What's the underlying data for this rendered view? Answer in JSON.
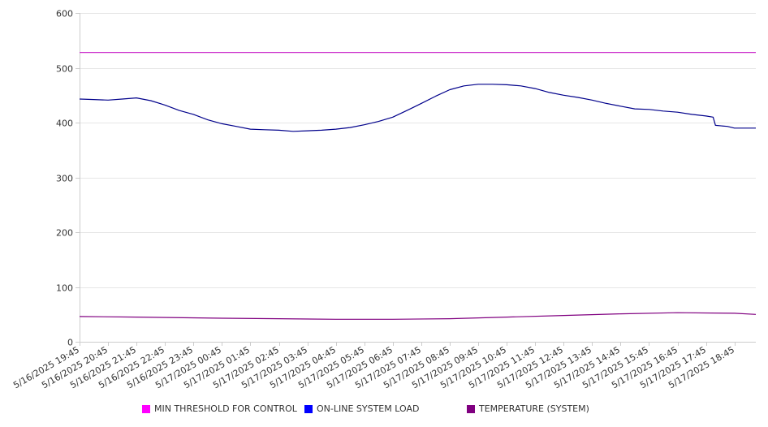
{
  "chart_data": {
    "type": "line",
    "title": "",
    "xlabel": "",
    "ylabel": "",
    "ylim": [
      0,
      600
    ],
    "yticks": [
      0,
      100,
      200,
      300,
      400,
      500,
      600
    ],
    "grid": true,
    "legend_position": "bottom",
    "x_start": "5/16/2025 19:45",
    "x_end": "5/17/2025 19:30",
    "xtick_labels": [
      "5/16/2025 19:45",
      "5/16/2025 20:45",
      "5/16/2025 21:45",
      "5/16/2025 22:45",
      "5/16/2025 23:45",
      "5/17/2025 00:45",
      "5/17/2025 01:45",
      "5/17/2025 02:45",
      "5/17/2025 03:45",
      "5/17/2025 04:45",
      "5/17/2025 05:45",
      "5/17/2025 06:45",
      "5/17/2025 07:45",
      "5/17/2025 08:45",
      "5/17/2025 09:45",
      "5/17/2025 10:45",
      "5/17/2025 11:45",
      "5/17/2025 12:45",
      "5/17/2025 13:45",
      "5/17/2025 14:45",
      "5/17/2025 15:45",
      "5/17/2025 16:45",
      "5/17/2025 17:45",
      "5/17/2025 18:45"
    ],
    "series": [
      {
        "name": "MIN THRESHOLD FOR CONTROL",
        "color": "#cc33cc",
        "legend_color": "#ff00ff",
        "points": [
          [
            "5/16/2025 19:45",
            528
          ],
          [
            "5/17/2025 19:30",
            528
          ]
        ]
      },
      {
        "name": "ON-LINE SYSTEM LOAD",
        "color": "#00008b",
        "legend_color": "#0000ff",
        "points": [
          [
            "5/16/2025 19:45",
            443
          ],
          [
            "5/16/2025 20:15",
            442
          ],
          [
            "5/16/2025 20:45",
            441
          ],
          [
            "5/16/2025 21:15",
            443
          ],
          [
            "5/16/2025 21:45",
            445
          ],
          [
            "5/16/2025 22:15",
            440
          ],
          [
            "5/16/2025 22:45",
            432
          ],
          [
            "5/16/2025 23:15",
            422
          ],
          [
            "5/16/2025 23:45",
            415
          ],
          [
            "5/17/2025 00:15",
            405
          ],
          [
            "5/17/2025 00:45",
            398
          ],
          [
            "5/17/2025 01:15",
            393
          ],
          [
            "5/17/2025 01:45",
            388
          ],
          [
            "5/17/2025 02:15",
            387
          ],
          [
            "5/17/2025 02:45",
            386
          ],
          [
            "5/17/2025 03:15",
            384
          ],
          [
            "5/17/2025 03:45",
            385
          ],
          [
            "5/17/2025 04:15",
            386
          ],
          [
            "5/17/2025 04:45",
            388
          ],
          [
            "5/17/2025 05:15",
            391
          ],
          [
            "5/17/2025 05:45",
            396
          ],
          [
            "5/17/2025 06:15",
            402
          ],
          [
            "5/17/2025 06:45",
            410
          ],
          [
            "5/17/2025 07:15",
            422
          ],
          [
            "5/17/2025 07:45",
            435
          ],
          [
            "5/17/2025 08:15",
            448
          ],
          [
            "5/17/2025 08:45",
            460
          ],
          [
            "5/17/2025 09:15",
            467
          ],
          [
            "5/17/2025 09:45",
            470
          ],
          [
            "5/17/2025 10:15",
            470
          ],
          [
            "5/17/2025 10:45",
            469
          ],
          [
            "5/17/2025 11:15",
            467
          ],
          [
            "5/17/2025 11:45",
            462
          ],
          [
            "5/17/2025 12:15",
            455
          ],
          [
            "5/17/2025 12:45",
            450
          ],
          [
            "5/17/2025 13:15",
            446
          ],
          [
            "5/17/2025 13:45",
            441
          ],
          [
            "5/17/2025 14:15",
            435
          ],
          [
            "5/17/2025 14:45",
            430
          ],
          [
            "5/17/2025 15:15",
            425
          ],
          [
            "5/17/2025 15:45",
            424
          ],
          [
            "5/17/2025 16:15",
            421
          ],
          [
            "5/17/2025 16:45",
            419
          ],
          [
            "5/17/2025 17:15",
            415
          ],
          [
            "5/17/2025 17:45",
            412
          ],
          [
            "5/17/2025 18:00",
            410
          ],
          [
            "5/17/2025 18:05",
            395
          ],
          [
            "5/17/2025 18:30",
            393
          ],
          [
            "5/17/2025 18:45",
            390
          ],
          [
            "5/17/2025 19:30",
            390
          ]
        ]
      },
      {
        "name": "TEMPERATURE (SYSTEM)",
        "color": "#800080",
        "legend_color": "#800080",
        "points": [
          [
            "5/16/2025 19:45",
            46
          ],
          [
            "5/16/2025 21:45",
            45
          ],
          [
            "5/17/2025 00:45",
            43
          ],
          [
            "5/17/2025 02:45",
            42
          ],
          [
            "5/17/2025 04:45",
            41
          ],
          [
            "5/17/2025 06:45",
            41
          ],
          [
            "5/17/2025 08:45",
            42
          ],
          [
            "5/17/2025 10:45",
            45
          ],
          [
            "5/17/2025 12:45",
            48
          ],
          [
            "5/17/2025 14:45",
            51
          ],
          [
            "5/17/2025 16:45",
            53
          ],
          [
            "5/17/2025 18:45",
            52
          ],
          [
            "5/17/2025 19:30",
            50
          ]
        ]
      }
    ]
  }
}
